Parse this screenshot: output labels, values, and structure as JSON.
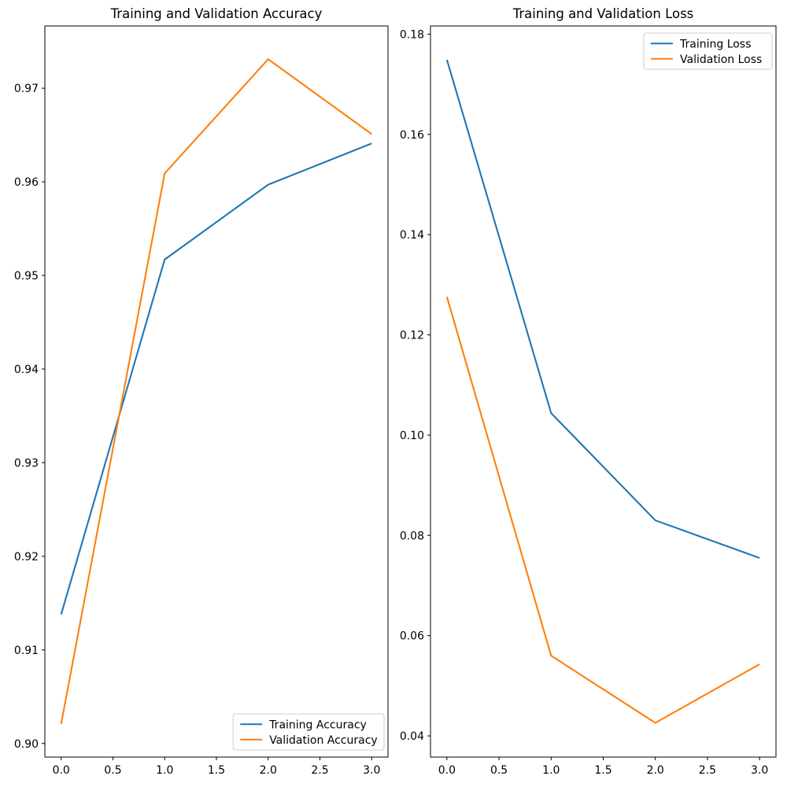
{
  "figure": {
    "background": "#ffffff",
    "text_color": "#000000",
    "spine_color": "#000000",
    "legend_border_color": "#cccccc",
    "legend_background": "#ffffff"
  },
  "chart_data": [
    {
      "type": "line",
      "title": "Training and Validation Accuracy",
      "xlabel": "",
      "ylabel": "",
      "x": [
        0,
        1,
        2,
        3
      ],
      "series": [
        {
          "name": "Training Accuracy",
          "color": "#1f77b4",
          "values": [
            0.9138,
            0.9517,
            0.9597,
            0.9641
          ]
        },
        {
          "name": "Validation Accuracy",
          "color": "#ff7f0e",
          "values": [
            0.9021,
            0.9609,
            0.9731,
            0.9651
          ]
        }
      ],
      "xlim": [
        -0.1575,
        3.1575
      ],
      "ylim": [
        0.89855,
        0.97665
      ],
      "xticks": [
        0.0,
        0.5,
        1.0,
        1.5,
        2.0,
        2.5,
        3.0
      ],
      "xtick_labels": [
        "0.0",
        "0.5",
        "1.0",
        "1.5",
        "2.0",
        "2.5",
        "3.0"
      ],
      "yticks": [
        0.9,
        0.91,
        0.92,
        0.93,
        0.94,
        0.95,
        0.96,
        0.97
      ],
      "ytick_labels": [
        "0.90",
        "0.91",
        "0.92",
        "0.93",
        "0.94",
        "0.95",
        "0.96",
        "0.97"
      ],
      "grid": false,
      "legend_position": "lower right"
    },
    {
      "type": "line",
      "title": "Training and Validation Loss",
      "xlabel": "",
      "ylabel": "",
      "x": [
        0,
        1,
        2,
        3
      ],
      "series": [
        {
          "name": "Training Loss",
          "color": "#1f77b4",
          "values": [
            0.1749,
            0.1044,
            0.083,
            0.0755
          ]
        },
        {
          "name": "Validation Loss",
          "color": "#ff7f0e",
          "values": [
            0.1276,
            0.056,
            0.0426,
            0.0543
          ]
        }
      ],
      "xlim": [
        -0.1575,
        3.1575
      ],
      "ylim": [
        0.03577,
        0.18163
      ],
      "xticks": [
        0.0,
        0.5,
        1.0,
        1.5,
        2.0,
        2.5,
        3.0
      ],
      "xtick_labels": [
        "0.0",
        "0.5",
        "1.0",
        "1.5",
        "2.0",
        "2.5",
        "3.0"
      ],
      "yticks": [
        0.04,
        0.06,
        0.08,
        0.1,
        0.12,
        0.14,
        0.16,
        0.18
      ],
      "ytick_labels": [
        "0.04",
        "0.06",
        "0.08",
        "0.10",
        "0.12",
        "0.14",
        "0.16",
        "0.18"
      ],
      "grid": false,
      "legend_position": "upper right"
    }
  ]
}
